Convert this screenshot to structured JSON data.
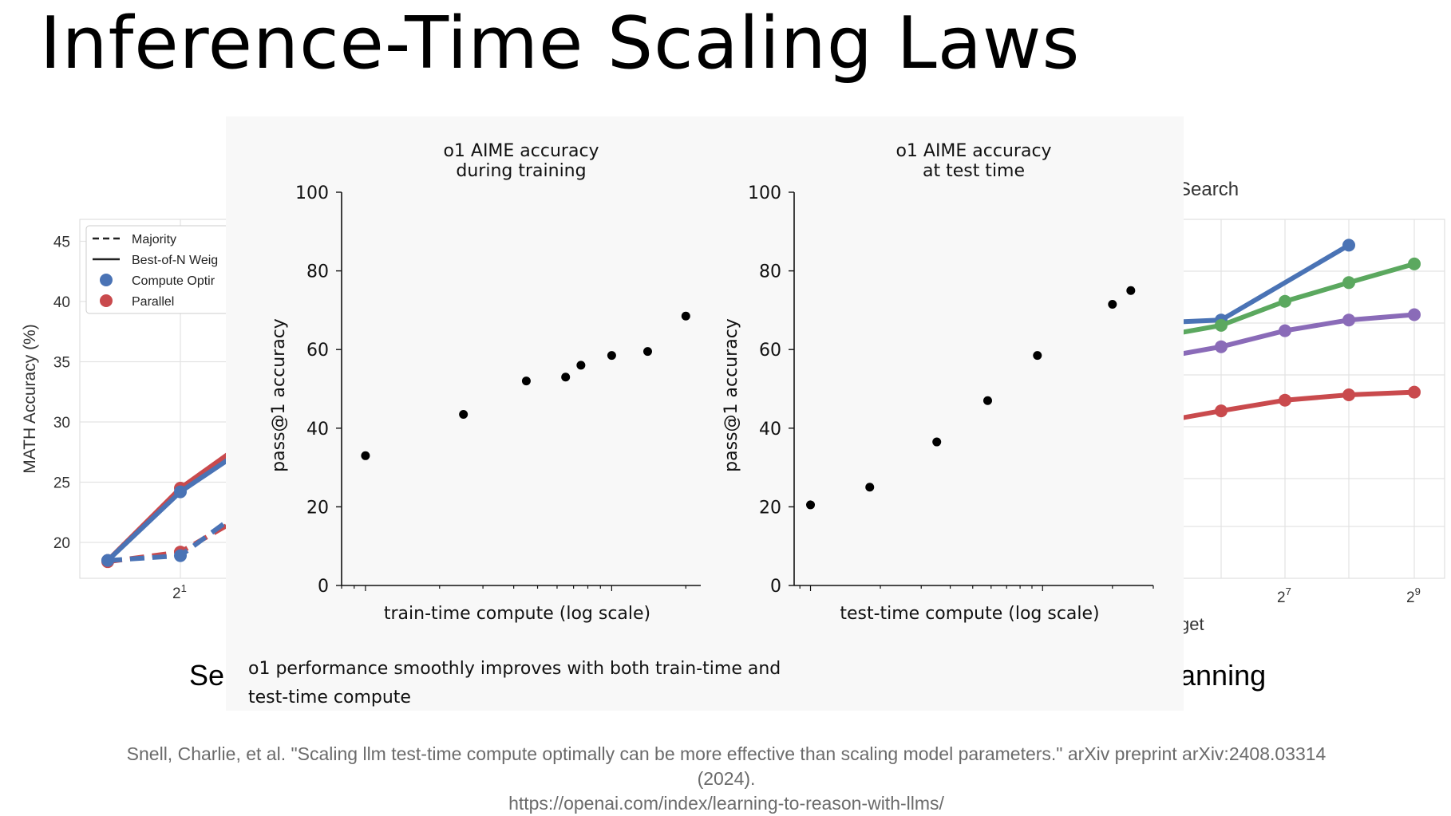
{
  "slide": {
    "title": "Inference-Time Scaling Laws",
    "left_caption_fragment": "Se",
    "right_caption_fragment": "anning",
    "citation_line1": "Snell, Charlie, et al. \"Scaling llm test-time compute optimally can be more effective than scaling model parameters.\" arXiv preprint arXiv:2408.03314",
    "citation_line2": "(2024).",
    "citation_line3": "https://openai.com/index/learning-to-reason-with-llms/"
  },
  "overlay": {
    "caption": "o1 performance smoothly improves with both train-time and test-time compute"
  },
  "chart_data": [
    {
      "type": "scatter",
      "title": "o1 AIME accuracy\nduring training",
      "xlabel": "train-time compute (log scale)",
      "ylabel": "pass@1 accuracy",
      "ylim": [
        0,
        100
      ],
      "yticks": [
        0,
        20,
        40,
        60,
        80,
        100
      ],
      "xscale": "log",
      "x": [
        1,
        2.5,
        4.5,
        6.5,
        7.5,
        10,
        14,
        20
      ],
      "y": [
        33,
        43.5,
        52,
        53,
        56,
        58.5,
        59.5,
        68.5
      ],
      "grid": false
    },
    {
      "type": "scatter",
      "title": "o1 AIME accuracy\nat test time",
      "xlabel": "test-time compute (log scale)",
      "ylabel": "pass@1 accuracy",
      "ylim": [
        0,
        100
      ],
      "yticks": [
        0,
        20,
        40,
        60,
        80,
        100
      ],
      "xscale": "log",
      "x": [
        1,
        1.8,
        3.5,
        5.8,
        9.5,
        20,
        24
      ],
      "y": [
        20.5,
        25,
        36.5,
        47,
        58.5,
        71.5,
        75
      ],
      "grid": false
    },
    {
      "type": "line",
      "partially_visible": true,
      "ylabel": "MATH Accuracy (%)",
      "yticks": [
        20,
        25,
        30,
        35,
        40,
        45
      ],
      "xtick_label": "2",
      "xtick_exp": "1",
      "legend": [
        "Majority",
        "Best-of-N Weig",
        "Compute Optir",
        "Parallel"
      ],
      "legend_position": "top-left",
      "series": [
        {
          "name": "Parallel",
          "color": "#c94a4d",
          "style": "solid",
          "x": [
            1,
            2,
            3
          ],
          "y": [
            18.5,
            24.5,
            28
          ]
        },
        {
          "name": "Compute Optir",
          "color": "#4a73b5",
          "style": "solid",
          "x": [
            1,
            2,
            3
          ],
          "y": [
            18.5,
            24.2,
            27.5
          ]
        },
        {
          "name": "Majority",
          "color": "#c94a4d",
          "style": "dashed",
          "x": [
            1,
            2,
            3
          ],
          "y": [
            18.4,
            19.2,
            22
          ]
        },
        {
          "name": "Majority",
          "color": "#4a73b5",
          "style": "dashed",
          "x": [
            1,
            2,
            3
          ],
          "y": [
            18.5,
            18.9,
            22.5
          ]
        }
      ]
    },
    {
      "type": "line",
      "partially_visible": true,
      "title_fragment": "Search",
      "xlabel_fragment": "get",
      "xtick_labels": [
        {
          "base": "2",
          "exp": "7"
        },
        {
          "base": "2",
          "exp": "9"
        }
      ],
      "series": [
        {
          "color": "#4a73b5",
          "x": [
            5,
            6,
            8
          ],
          "y": [
            63,
            64,
            78
          ]
        },
        {
          "color": "#5ba85f",
          "x": [
            5,
            6,
            7,
            8,
            9
          ],
          "y": [
            59,
            63,
            67.5,
            71,
            74.5
          ]
        },
        {
          "color": "#8a6bb8",
          "x": [
            5,
            6,
            7,
            8,
            9
          ],
          "y": [
            55,
            59,
            62,
            64,
            65
          ]
        },
        {
          "color": "#c94a4d",
          "x": [
            5,
            6,
            7,
            8,
            9
          ],
          "y": [
            43,
            47,
            49,
            50,
            50.5
          ]
        }
      ]
    }
  ]
}
